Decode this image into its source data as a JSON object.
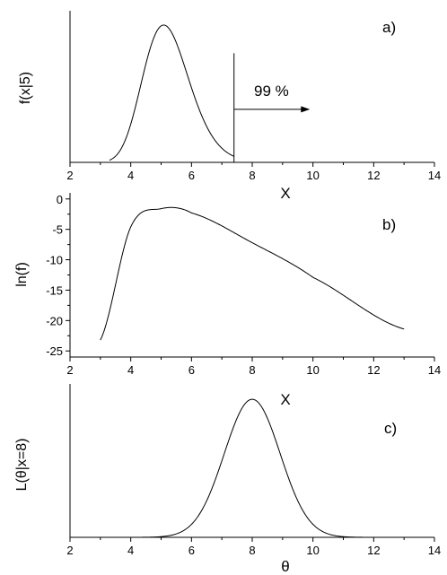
{
  "colors": {
    "background": "#ffffff",
    "ink": "#000000"
  },
  "chart_data": [
    {
      "type": "line",
      "panel_label": "a)",
      "xlabel": "X",
      "ylabel": "f(x|5)",
      "xlim": [
        2,
        14
      ],
      "ylim": [
        0,
        1
      ],
      "x_ticks": [
        "2",
        "4",
        "6",
        "8",
        "10",
        "12",
        "14"
      ],
      "y_ticks": [],
      "grid": false,
      "annotation": {
        "text": "99 %",
        "cutoff_x": 7.4,
        "arrow_to_x": 9.9,
        "line_top": 0.72,
        "arrow_y": 0.35,
        "text_x": 8.1,
        "text_y": 0.5
      },
      "series": [
        {
          "model": "lognormal",
          "peak_x": 5.0,
          "scale": 5.2,
          "shape": 0.15,
          "x_range": [
            3.3,
            7.4
          ]
        }
      ]
    },
    {
      "type": "line",
      "panel_label": "b)",
      "xlabel": "X",
      "ylabel": "ln(f)",
      "xlim": [
        2,
        14
      ],
      "ylim": [
        -26,
        1
      ],
      "x_ticks": [
        "2",
        "4",
        "6",
        "8",
        "10",
        "12",
        "14"
      ],
      "y_ticks": [
        "0",
        "-5",
        "-10",
        "-15",
        "-20",
        "-25"
      ],
      "y_tick_values": [
        0,
        -5,
        -10,
        -15,
        -20,
        -25
      ],
      "grid": false,
      "series": [
        {
          "model": "log-lognormal",
          "peak_x": 5.0,
          "peak_y": -1.6,
          "x_range": [
            3.0,
            13.0
          ],
          "sample_points": {
            "x": [
              3,
              4,
              5,
              6,
              8,
              10,
              13
            ],
            "y": [
              -23.2,
              -4.6,
              -1.6,
              -2.3,
              -7.2,
              -12.9,
              -21.4
            ]
          }
        }
      ]
    },
    {
      "type": "line",
      "panel_label": "c)",
      "xlabel": "θ",
      "ylabel": "L(θ|x=8)",
      "xlim": [
        2,
        14
      ],
      "ylim": [
        0,
        1
      ],
      "x_ticks": [
        "2",
        "4",
        "6",
        "8",
        "10",
        "12",
        "14"
      ],
      "y_ticks": [],
      "grid": false,
      "series": [
        {
          "model": "gaussian",
          "peak_x": 8.0,
          "sigma": 0.92,
          "x_range": [
            4.3,
            12.0
          ]
        }
      ]
    }
  ]
}
